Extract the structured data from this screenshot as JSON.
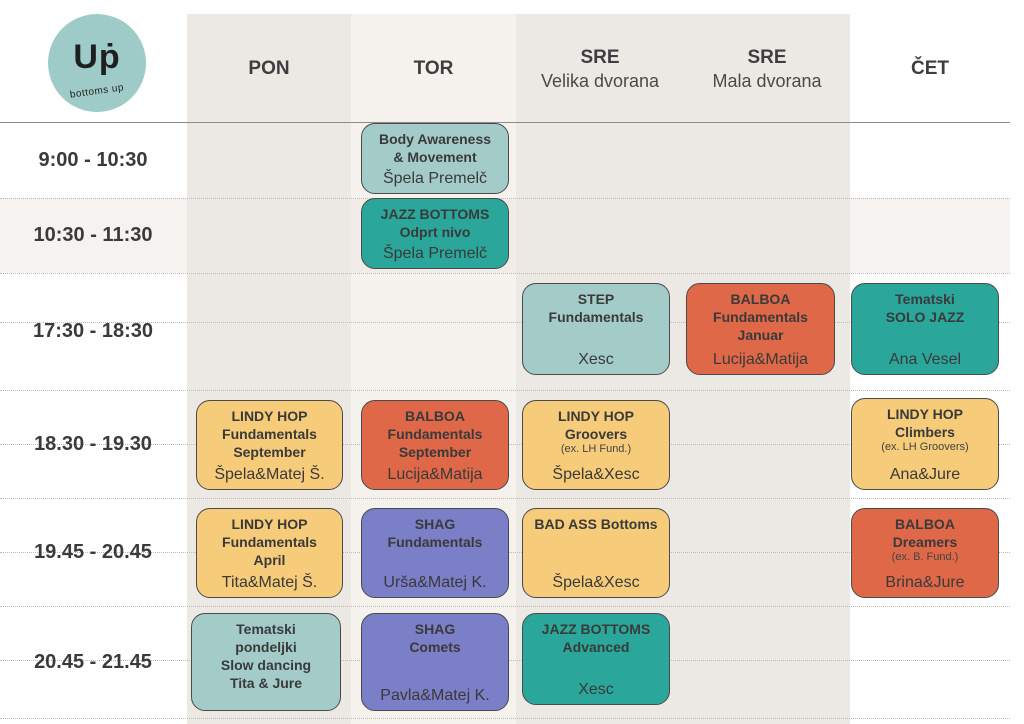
{
  "logo": {
    "main": "Uṗ",
    "sub": "bottoms up"
  },
  "columns": [
    {
      "day": "PON",
      "room": ""
    },
    {
      "day": "TOR",
      "room": ""
    },
    {
      "day": "SRE",
      "room": "Velika dvorana"
    },
    {
      "day": "SRE",
      "room": "Mala dvorana"
    },
    {
      "day": "ČET",
      "room": ""
    }
  ],
  "times": [
    "9:00 - 10:30",
    "10:30 - 11:30",
    "17:30 - 18:30",
    "18.30 - 19.30",
    "19.45 - 20.45",
    "20.45 - 21.45"
  ],
  "classes": [
    {
      "title": [
        "Body Awareness",
        "& Movement"
      ],
      "note": "",
      "who": "Špela Premelč",
      "color": "mint"
    },
    {
      "title": [
        "JAZZ BOTTOMS",
        "Odprt nivo"
      ],
      "note": "",
      "who": "Špela Premelč",
      "color": "teal"
    },
    {
      "title": [
        "STEP",
        "Fundamentals"
      ],
      "note": "",
      "who": "Xesc",
      "color": "mint"
    },
    {
      "title": [
        "BALBOA",
        "Fundamentals",
        "Januar"
      ],
      "note": "",
      "who": "Lucija&Matija",
      "color": "orange"
    },
    {
      "title": [
        "Tematski",
        "SOLO JAZZ"
      ],
      "note": "",
      "who": "Ana Vesel",
      "color": "teal"
    },
    {
      "title": [
        "LINDY HOP",
        "Fundamentals",
        "September"
      ],
      "note": "",
      "who": "Špela&Matej Š.",
      "color": "yellow"
    },
    {
      "title": [
        "BALBOA",
        "Fundamentals",
        "September"
      ],
      "note": "",
      "who": "Lucija&Matija",
      "color": "orange"
    },
    {
      "title": [
        "LINDY HOP",
        "Groovers"
      ],
      "note": "(ex. LH Fund.)",
      "who": "Špela&Xesc",
      "color": "yellow"
    },
    {
      "title": [
        "LINDY HOP",
        "Climbers"
      ],
      "note": "(ex. LH Groovers)",
      "who": "Ana&Jure",
      "color": "yellow"
    },
    {
      "title": [
        "LINDY HOP",
        "Fundamentals",
        "April"
      ],
      "note": "",
      "who": "Tita&Matej Š.",
      "color": "yellow"
    },
    {
      "title": [
        "SHAG",
        "Fundamentals"
      ],
      "note": "",
      "who": "Urša&Matej K.",
      "color": "purple"
    },
    {
      "title": [
        "BAD ASS Bottoms"
      ],
      "note": "",
      "who": "Špela&Xesc",
      "color": "yellow"
    },
    {
      "title": [
        "BALBOA",
        "Dreamers"
      ],
      "note": "(ex. B. Fund.)",
      "who": "Brina&Jure",
      "color": "orange"
    },
    {
      "title": [
        "Tematski",
        "pondeljki",
        "Slow dancing",
        "Tita & Jure"
      ],
      "note": "",
      "who": "",
      "color": "mint"
    },
    {
      "title": [
        "SHAG",
        "Comets"
      ],
      "note": "",
      "who": "Pavla&Matej K.",
      "color": "purple"
    },
    {
      "title": [
        "JAZZ BOTTOMS",
        "Advanced"
      ],
      "note": "",
      "who": "Xesc",
      "color": "teal"
    }
  ]
}
